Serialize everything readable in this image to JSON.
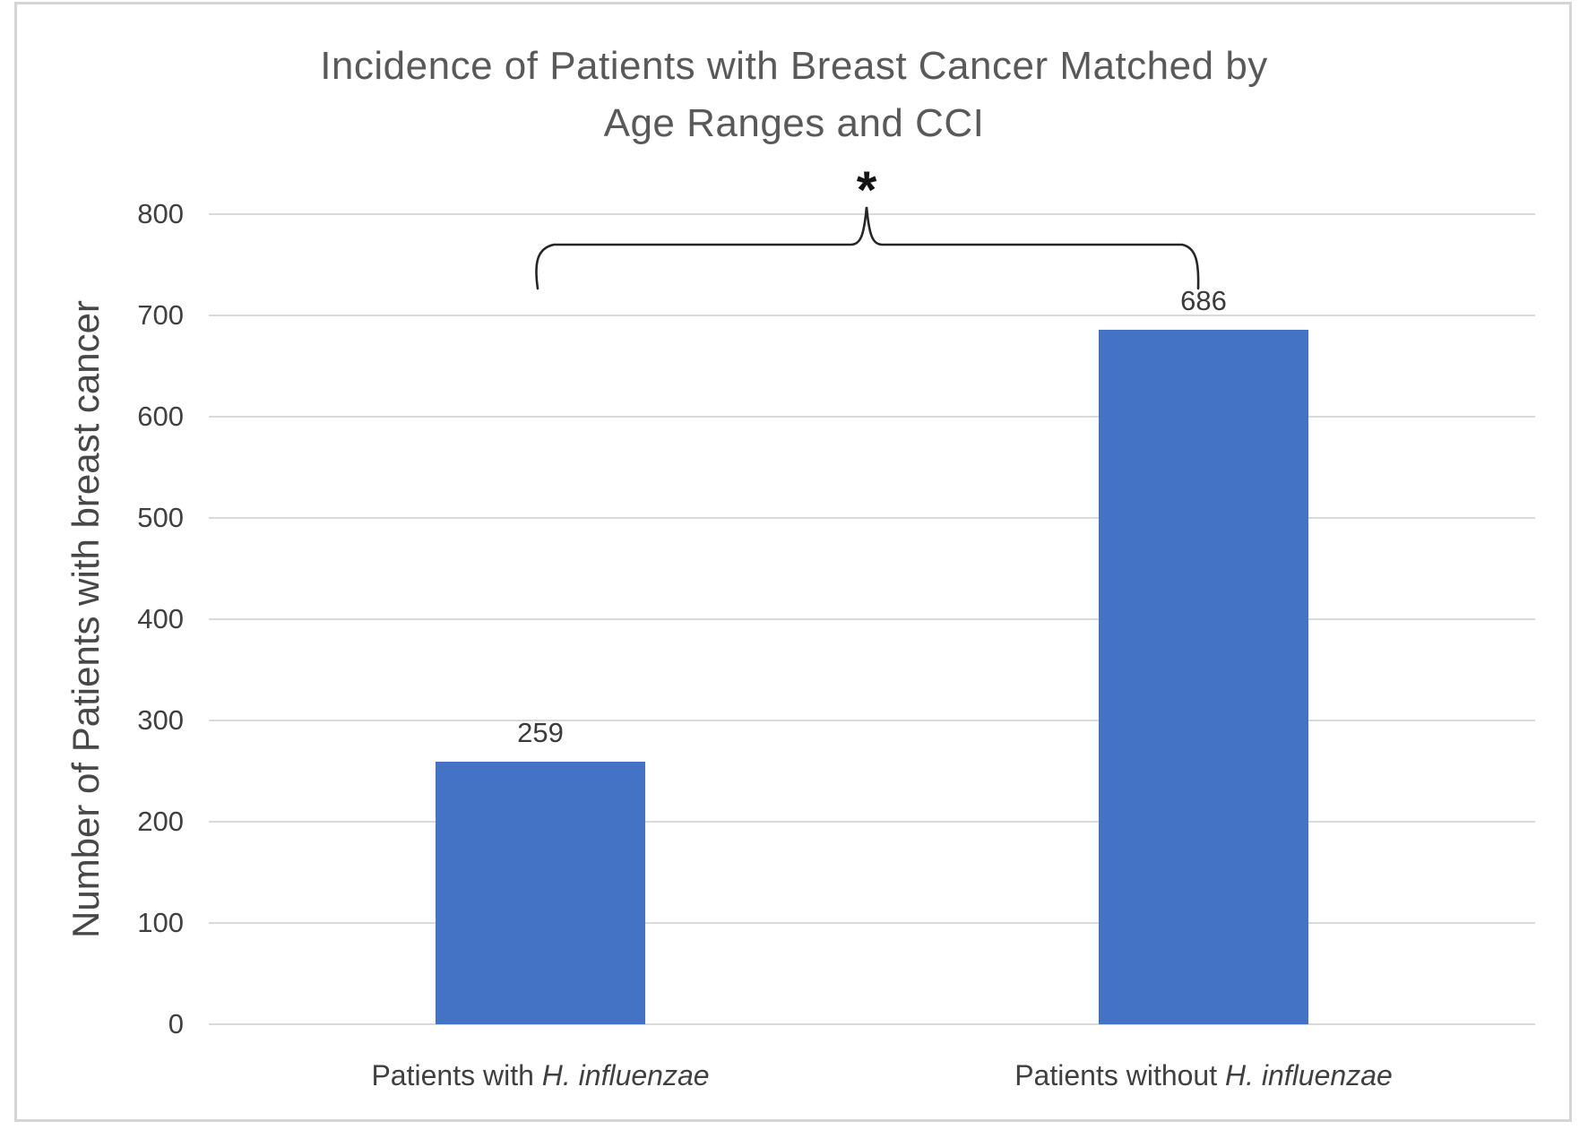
{
  "chart_data": {
    "type": "bar",
    "title_line1": "Incidence of Patients with Breast Cancer Matched by",
    "title_line2": "Age Ranges and CCI",
    "ylabel": "Number of Patients with breast cancer",
    "categories": [
      {
        "prefix": "Patients with ",
        "italic": "H. influenzae"
      },
      {
        "prefix": "Patients without ",
        "italic": "H. influenzae"
      }
    ],
    "values": [
      259,
      686
    ],
    "data_labels": [
      "259",
      "686"
    ],
    "yticks": [
      0,
      100,
      200,
      300,
      400,
      500,
      600,
      700,
      800
    ],
    "ylim": [
      0,
      800
    ],
    "grid": "horizontal-only",
    "legend": "none",
    "bar_color": "#4472C4",
    "gridline_color": "#d9d9d9",
    "significance": {
      "symbol": "*",
      "bracket": "curly brace spanning both bars with center spike under asterisk"
    }
  },
  "colors": {
    "title_text": "#595959",
    "axis_text": "#404040",
    "bracket_stroke": "#262626",
    "frame_border": "#d5d5d5",
    "background": "#ffffff"
  }
}
